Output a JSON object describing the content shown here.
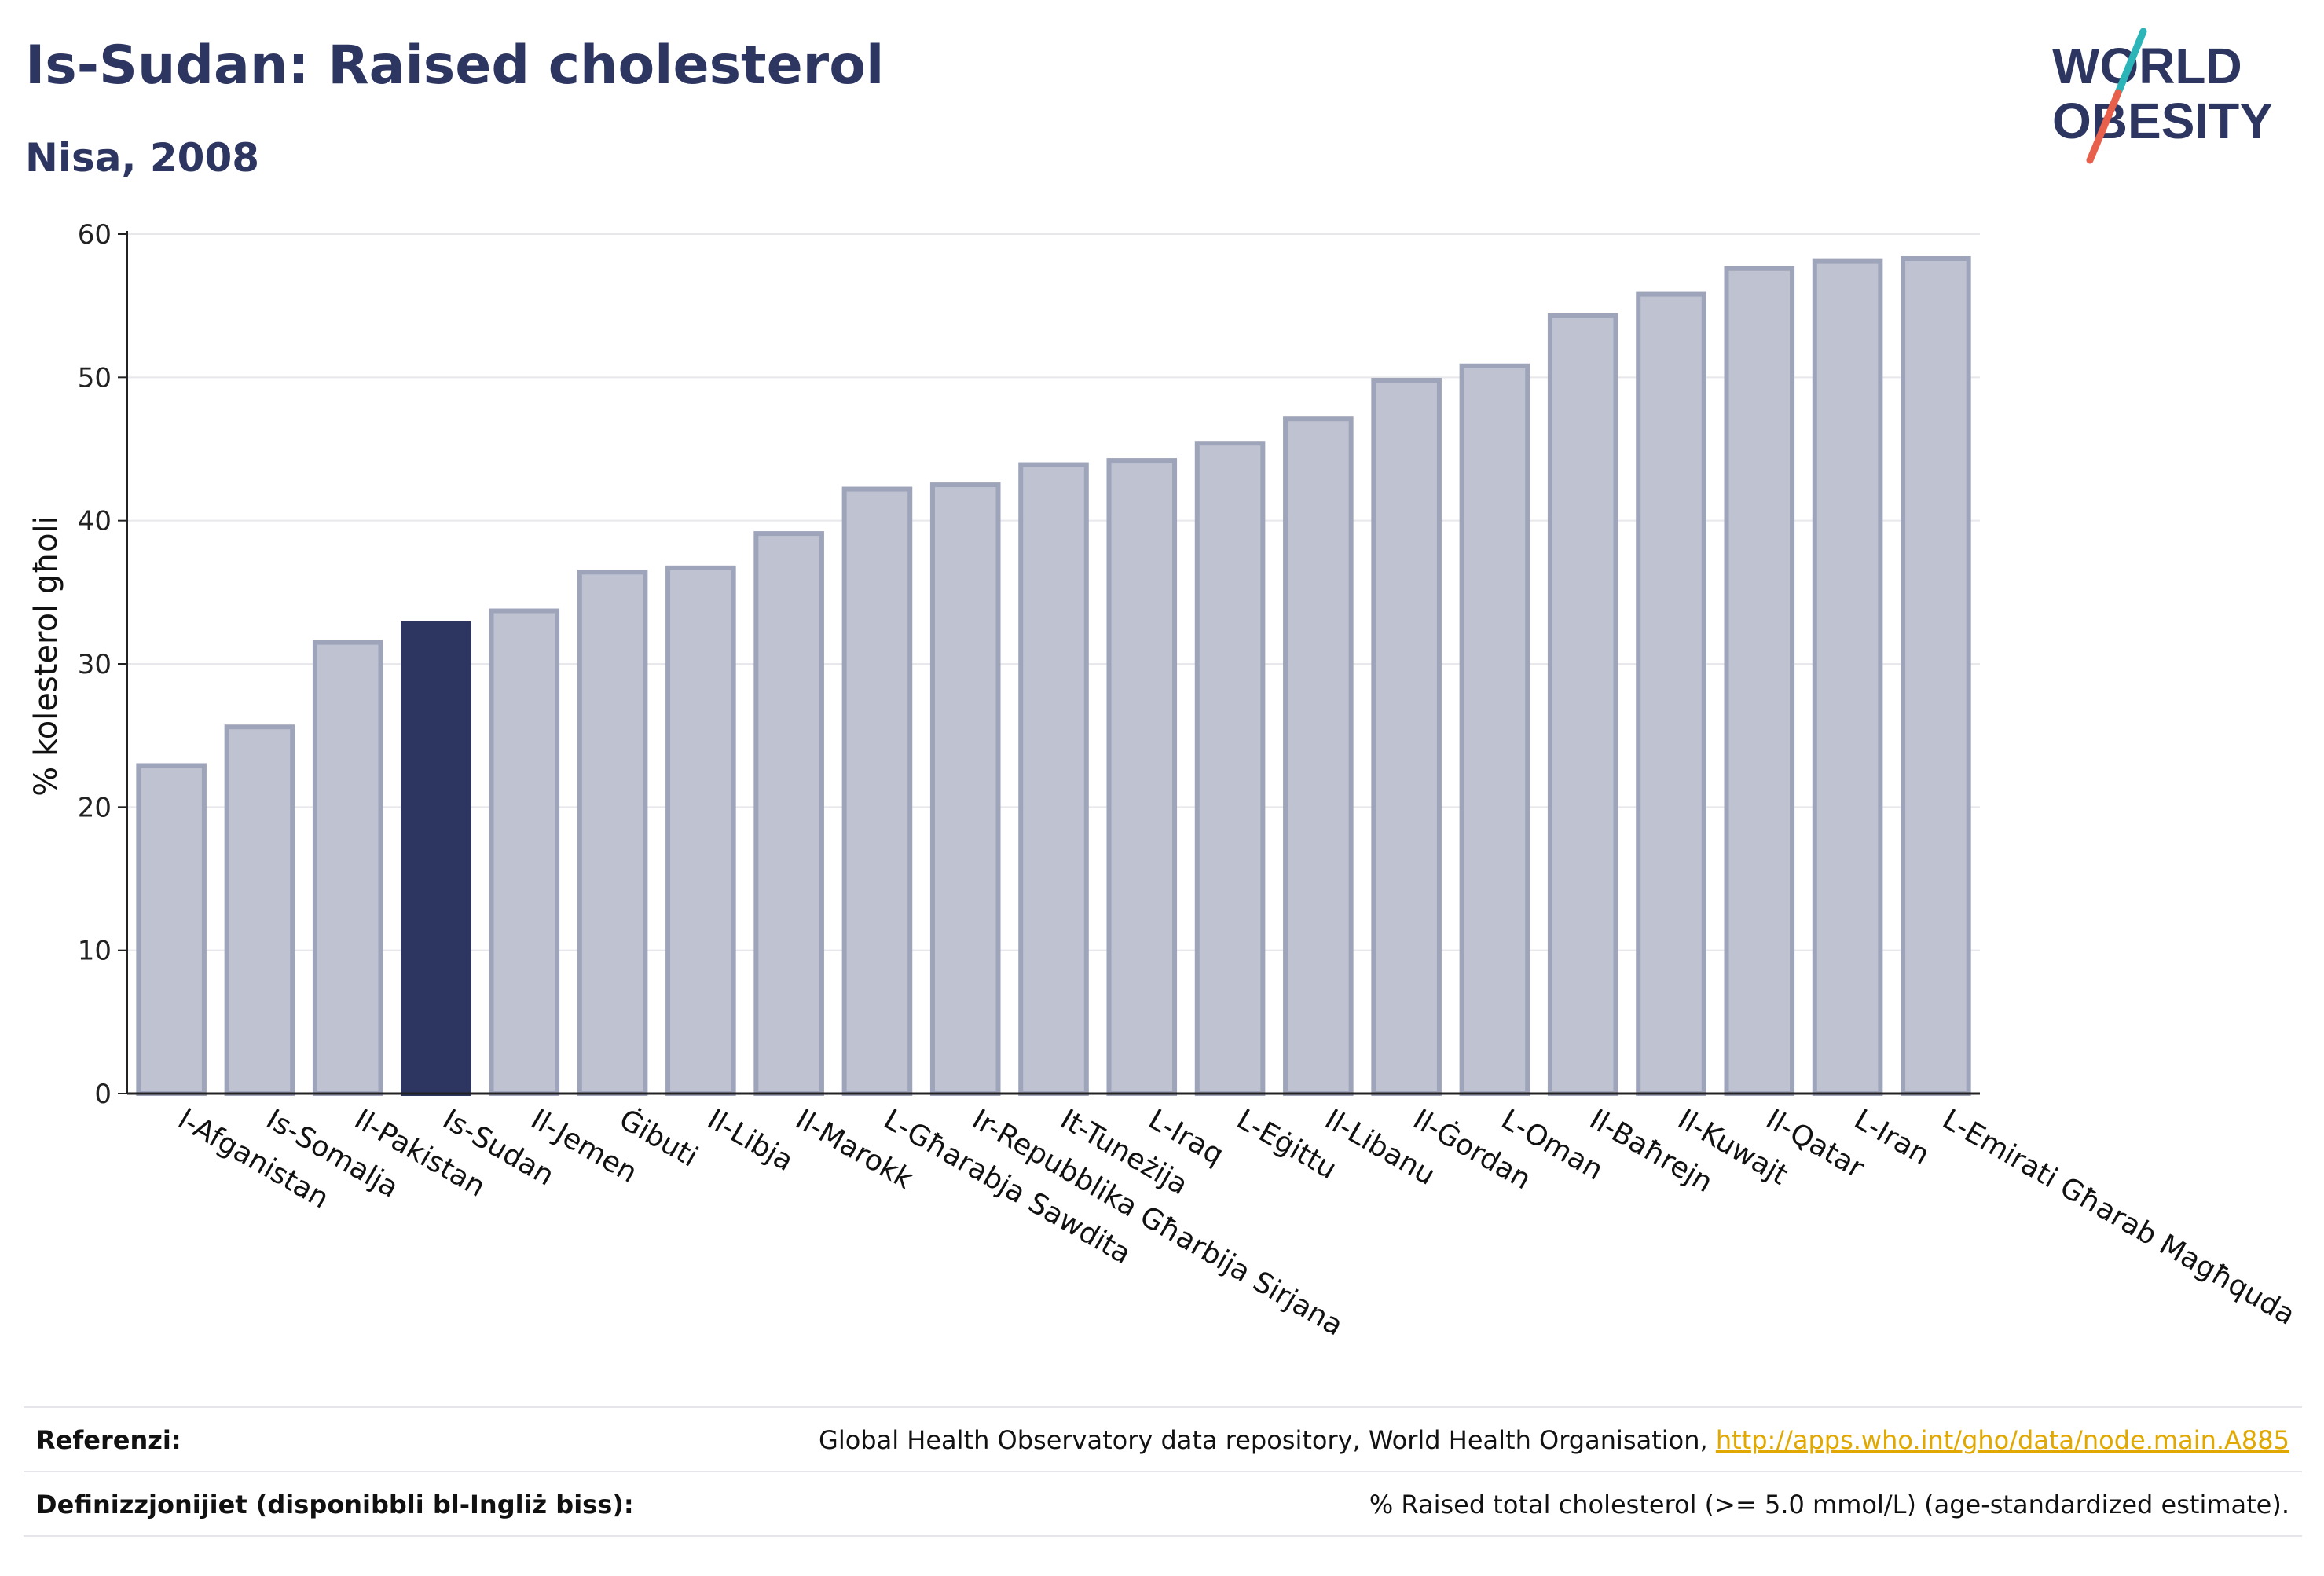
{
  "header": {
    "title": "Is-Sudan: Raised cholesterol",
    "subtitle": "Nisa, 2008"
  },
  "logo": {
    "line1": "WORLD",
    "line2": "OBESITY",
    "colors": {
      "text": "#2d3561",
      "slash_top": "#2bb5b8",
      "slash_bottom": "#e8604c"
    }
  },
  "colors": {
    "bar_default": "#bfc3d1",
    "bar_border": "#9ea4b9",
    "bar_highlight": "#2d3561",
    "grid": "#e8e8ec",
    "axis": "#222222"
  },
  "chart_data": {
    "type": "bar",
    "ylabel": "% kolesterol għoli",
    "ylim": [
      0,
      60
    ],
    "yticks": [
      0,
      10,
      20,
      30,
      40,
      50,
      60
    ],
    "grid": true,
    "highlight": "Is-Sudan",
    "categories": [
      "l-Afganistan",
      "Is-Somalja",
      "Il-Pakistan",
      "Is-Sudan",
      "Il-Jemen",
      "Ġibuti",
      "Il-Libja",
      "Il-Marokk",
      "L-Għarabja Sawdita",
      "Ir-Repubblika Għarbija Sirjana",
      "It-Tuneżija",
      "L-Iraq",
      "L-Eġittu",
      "Il-Libanu",
      "Il-Ġordan",
      "L-Oman",
      "Il-Baħrejn",
      "Il-Kuwajt",
      "Il-Qatar",
      "L-Iran",
      "L-Emirati Għarab Magħquda"
    ],
    "values": [
      22.9,
      25.6,
      31.5,
      32.8,
      33.7,
      36.4,
      36.7,
      39.1,
      42.2,
      42.5,
      43.9,
      44.2,
      45.4,
      47.1,
      49.8,
      50.8,
      54.3,
      55.8,
      57.6,
      58.1,
      58.3
    ]
  },
  "footer": {
    "references_label": "Referenzi:",
    "references_text": "Global Health Observatory data repository, World Health Organisation,",
    "references_link": "http://apps.who.int/gho/data/node.main.A885",
    "definitions_label": "Definizzjonijiet (disponibbli bl-Ingliż biss):",
    "definitions_text": "% Raised total cholesterol (>= 5.0 mmol/L) (age-standardized estimate)."
  }
}
